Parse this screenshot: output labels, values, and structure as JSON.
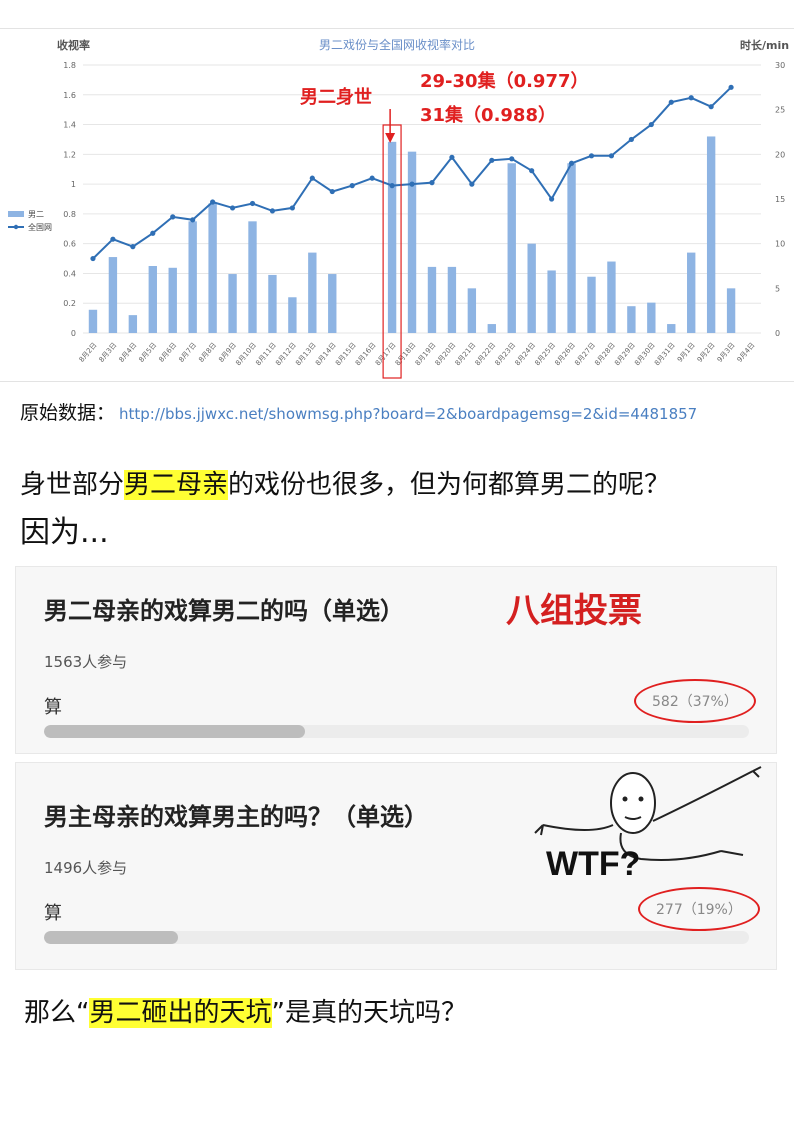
{
  "chart_data": {
    "type": "bar",
    "title": "男二戏份与全国网收视率对比",
    "ylabel_left": "收视率",
    "ylabel_right": "时长/min",
    "ylim_left": [
      0,
      1.8
    ],
    "ylim_right": [
      0,
      30
    ],
    "left_ticks": [
      "0",
      "0.2",
      "0.4",
      "0.6",
      "0.8",
      "1",
      "1.2",
      "1.4",
      "1.6",
      "1.8"
    ],
    "right_ticks": [
      "0",
      "5",
      "10",
      "15",
      "20",
      "25",
      "30"
    ],
    "categories": [
      "8月2日",
      "8月3日",
      "8月4日",
      "8月5日",
      "8月6日",
      "8月7日",
      "8月8日",
      "8月9日",
      "8月10日",
      "8月11日",
      "8月12日",
      "8月13日",
      "8月14日",
      "8月15日",
      "8月16日",
      "8月17日",
      "8月18日",
      "8月19日",
      "8月20日",
      "8月21日",
      "8月22日",
      "8月23日",
      "8月24日",
      "8月25日",
      "8月26日",
      "8月27日",
      "8月28日",
      "8月29日",
      "8月30日",
      "8月31日",
      "9月1日",
      "9月2日",
      "9月3日",
      "9月4日"
    ],
    "series": [
      {
        "name": "男二",
        "kind": "bar",
        "axis": "right",
        "color": "#8eb4e3",
        "values": [
          2.6,
          8.5,
          2,
          7.5,
          7.3,
          12.5,
          14.5,
          6.6,
          12.5,
          6.5,
          4,
          9,
          6.6,
          0,
          0,
          21.4,
          20.3,
          7.4,
          7.4,
          5,
          1,
          19,
          10,
          7,
          19,
          6.3,
          8,
          3,
          3.4,
          1,
          9,
          22,
          5,
          0
        ]
      },
      {
        "name": "全国网",
        "kind": "line",
        "axis": "left",
        "color": "#2f6fb5",
        "values": [
          0.5,
          0.63,
          0.58,
          0.67,
          0.78,
          0.76,
          0.88,
          0.84,
          0.87,
          0.82,
          0.84,
          1.04,
          0.95,
          0.99,
          1.04,
          0.99,
          1.0,
          1.01,
          1.18,
          1.0,
          1.16,
          1.17,
          1.09,
          0.9,
          1.14,
          1.19,
          1.19,
          1.3,
          1.4,
          1.55,
          1.58,
          1.52,
          1.65,
          null
        ]
      }
    ],
    "annotations": {
      "label": "男二身世",
      "ep_29_30": "29-30集（0.977）",
      "ep_31": "31集（0.988）"
    }
  },
  "source": {
    "label": "原始数据：",
    "url": "http://bbs.jjwxc.net/showmsg.php?board=2&boardpagemsg=2&id=4481857"
  },
  "paragraph1": {
    "before": "身世部分",
    "highlight": "男二母亲",
    "after": "的戏份也很多，但为何都算男二的呢？"
  },
  "paragraph2": "因为...",
  "poll1": {
    "title": "男二母亲的戏算男二的吗（单选）",
    "stamp": "八组投票",
    "participants": "1563人参与",
    "option": "算",
    "result": "582（37%）",
    "fraction": 0.37
  },
  "poll2": {
    "title": "男主母亲的戏算男主的吗？（单选）",
    "meme": "WTF?",
    "participants": "1496人参与",
    "option": "算",
    "result": "277（19%）",
    "fraction": 0.19
  },
  "paragraph3": {
    "before": "那么“",
    "highlight": "男二砸出的天坑",
    "after": "”是真的天坑吗？"
  }
}
